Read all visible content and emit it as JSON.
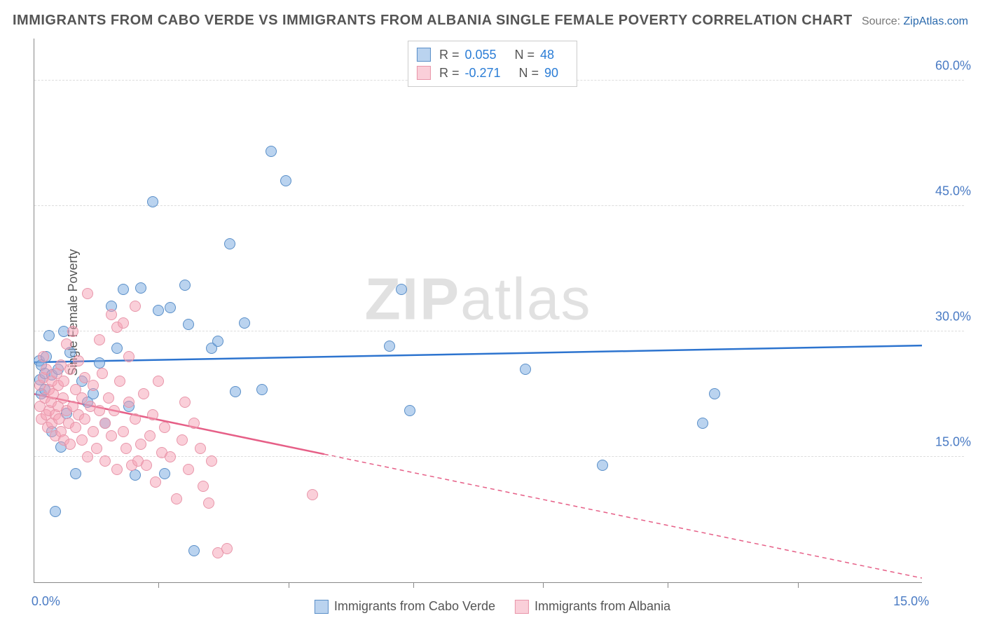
{
  "title": "IMMIGRANTS FROM CABO VERDE VS IMMIGRANTS FROM ALBANIA SINGLE FEMALE POVERTY CORRELATION CHART",
  "source_label": "Source:",
  "source_name": "ZipAtlas.com",
  "ylabel": "Single Female Poverty",
  "watermark": "ZIPatlas",
  "chart": {
    "type": "scatter",
    "xlim": [
      0,
      15
    ],
    "ylim": [
      0,
      65
    ],
    "x_ticks": [
      0,
      15
    ],
    "x_tick_labels": [
      "0.0%",
      "15.0%"
    ],
    "x_minor_ticks": [
      2.1,
      4.3,
      6.4,
      8.6,
      10.7,
      12.9
    ],
    "y_ticks": [
      15,
      30,
      45,
      60
    ],
    "y_tick_labels": [
      "15.0%",
      "30.0%",
      "45.0%",
      "60.0%"
    ],
    "grid_color": "#dddddd",
    "axis_color": "#888888",
    "background_color": "#ffffff",
    "label_color": "#4a7bc4",
    "title_color": "#555555",
    "title_fontsize": 20,
    "label_fontsize": 18,
    "tick_fontsize": 18,
    "marker_size": 16,
    "series": [
      {
        "name": "Immigrants from Cabo Verde",
        "color_fill": "rgba(130,175,225,0.55)",
        "color_stroke": "#5a8fc8",
        "r": 0.055,
        "n": 48,
        "trend": {
          "x1": 0,
          "y1": 26.3,
          "x2": 15,
          "y2": 28.3,
          "color": "#2d74cf",
          "width": 2.5,
          "solid_until_x": 15
        },
        "points": [
          [
            0.08,
            26.5
          ],
          [
            0.1,
            24.2
          ],
          [
            0.12,
            22.5
          ],
          [
            0.12,
            26.0
          ],
          [
            0.18,
            25.0
          ],
          [
            0.18,
            23.0
          ],
          [
            0.2,
            27.0
          ],
          [
            0.25,
            29.5
          ],
          [
            0.3,
            24.8
          ],
          [
            0.3,
            18.0
          ],
          [
            0.35,
            8.5
          ],
          [
            0.4,
            25.5
          ],
          [
            0.45,
            16.2
          ],
          [
            0.5,
            30.0
          ],
          [
            0.55,
            20.2
          ],
          [
            0.6,
            27.5
          ],
          [
            0.7,
            13.0
          ],
          [
            0.8,
            24.0
          ],
          [
            0.9,
            21.5
          ],
          [
            1.0,
            22.5
          ],
          [
            1.1,
            26.2
          ],
          [
            1.2,
            19.0
          ],
          [
            1.3,
            33.0
          ],
          [
            1.4,
            28.0
          ],
          [
            1.5,
            35.0
          ],
          [
            1.6,
            21.0
          ],
          [
            1.7,
            12.8
          ],
          [
            1.8,
            35.2
          ],
          [
            2.0,
            45.5
          ],
          [
            2.1,
            32.5
          ],
          [
            2.2,
            13.0
          ],
          [
            2.3,
            32.8
          ],
          [
            2.55,
            35.5
          ],
          [
            2.6,
            30.8
          ],
          [
            2.7,
            3.8
          ],
          [
            3.0,
            28.0
          ],
          [
            3.1,
            28.8
          ],
          [
            3.3,
            40.5
          ],
          [
            3.4,
            22.8
          ],
          [
            3.55,
            31.0
          ],
          [
            3.85,
            23.0
          ],
          [
            4.0,
            51.5
          ],
          [
            4.25,
            48.0
          ],
          [
            6.0,
            28.2
          ],
          [
            6.2,
            35.0
          ],
          [
            6.35,
            20.5
          ],
          [
            8.3,
            25.5
          ],
          [
            9.6,
            14.0
          ],
          [
            11.3,
            19.0
          ],
          [
            11.5,
            22.5
          ]
        ]
      },
      {
        "name": "Immigrants from Albania",
        "color_fill": "rgba(245,160,180,0.50)",
        "color_stroke": "#e896aa",
        "r": -0.271,
        "n": 90,
        "trend": {
          "x1": 0,
          "y1": 22.5,
          "x2": 15,
          "y2": 0.5,
          "color": "#e65f87",
          "width": 2.5,
          "solid_until_x": 4.9
        },
        "points": [
          [
            0.1,
            23.5
          ],
          [
            0.1,
            21.0
          ],
          [
            0.12,
            19.5
          ],
          [
            0.15,
            24.5
          ],
          [
            0.15,
            27.0
          ],
          [
            0.18,
            22.0
          ],
          [
            0.2,
            20.0
          ],
          [
            0.2,
            25.5
          ],
          [
            0.22,
            18.5
          ],
          [
            0.25,
            23.0
          ],
          [
            0.25,
            20.5
          ],
          [
            0.28,
            21.5
          ],
          [
            0.3,
            24.0
          ],
          [
            0.3,
            19.0
          ],
          [
            0.32,
            22.5
          ],
          [
            0.35,
            20.0
          ],
          [
            0.35,
            17.5
          ],
          [
            0.38,
            25.0
          ],
          [
            0.4,
            21.0
          ],
          [
            0.4,
            23.5
          ],
          [
            0.42,
            19.5
          ],
          [
            0.45,
            26.0
          ],
          [
            0.45,
            18.0
          ],
          [
            0.48,
            22.0
          ],
          [
            0.5,
            17.0
          ],
          [
            0.5,
            24.0
          ],
          [
            0.55,
            20.5
          ],
          [
            0.55,
            28.5
          ],
          [
            0.58,
            19.0
          ],
          [
            0.6,
            25.5
          ],
          [
            0.6,
            16.5
          ],
          [
            0.65,
            21.0
          ],
          [
            0.65,
            30.0
          ],
          [
            0.7,
            18.5
          ],
          [
            0.7,
            23.0
          ],
          [
            0.75,
            20.0
          ],
          [
            0.75,
            26.5
          ],
          [
            0.8,
            17.0
          ],
          [
            0.8,
            22.0
          ],
          [
            0.85,
            24.5
          ],
          [
            0.85,
            19.5
          ],
          [
            0.9,
            15.0
          ],
          [
            0.9,
            34.5
          ],
          [
            0.95,
            21.0
          ],
          [
            1.0,
            18.0
          ],
          [
            1.0,
            23.5
          ],
          [
            1.05,
            16.0
          ],
          [
            1.1,
            29.0
          ],
          [
            1.1,
            20.5
          ],
          [
            1.15,
            25.0
          ],
          [
            1.2,
            14.5
          ],
          [
            1.2,
            19.0
          ],
          [
            1.25,
            22.0
          ],
          [
            1.3,
            32.0
          ],
          [
            1.3,
            17.5
          ],
          [
            1.35,
            20.5
          ],
          [
            1.4,
            30.5
          ],
          [
            1.4,
            13.5
          ],
          [
            1.45,
            24.0
          ],
          [
            1.5,
            31.0
          ],
          [
            1.5,
            18.0
          ],
          [
            1.55,
            16.0
          ],
          [
            1.6,
            27.0
          ],
          [
            1.6,
            21.5
          ],
          [
            1.65,
            14.0
          ],
          [
            1.7,
            33.0
          ],
          [
            1.7,
            19.5
          ],
          [
            1.75,
            14.5
          ],
          [
            1.8,
            16.5
          ],
          [
            1.85,
            22.5
          ],
          [
            1.9,
            14.0
          ],
          [
            1.95,
            17.5
          ],
          [
            2.0,
            20.0
          ],
          [
            2.05,
            12.0
          ],
          [
            2.1,
            24.0
          ],
          [
            2.15,
            15.5
          ],
          [
            2.2,
            18.5
          ],
          [
            2.3,
            15.0
          ],
          [
            2.4,
            10.0
          ],
          [
            2.5,
            17.0
          ],
          [
            2.55,
            21.5
          ],
          [
            2.6,
            13.5
          ],
          [
            2.7,
            19.0
          ],
          [
            2.8,
            16.0
          ],
          [
            2.85,
            11.5
          ],
          [
            2.95,
            9.5
          ],
          [
            3.0,
            14.5
          ],
          [
            3.1,
            3.5
          ],
          [
            3.25,
            4.0
          ],
          [
            4.7,
            10.5
          ]
        ]
      }
    ]
  },
  "legend_top": {
    "rows": [
      {
        "swatch": "blue",
        "r_label": "R =",
        "r_val": "0.055",
        "n_label": "N =",
        "n_val": "48"
      },
      {
        "swatch": "pink",
        "r_label": "R =",
        "r_val": "-0.271",
        "n_label": "N =",
        "n_val": "90"
      }
    ]
  },
  "legend_bottom": {
    "items": [
      {
        "swatch": "blue",
        "label": "Immigrants from Cabo Verde"
      },
      {
        "swatch": "pink",
        "label": "Immigrants from Albania"
      }
    ]
  }
}
